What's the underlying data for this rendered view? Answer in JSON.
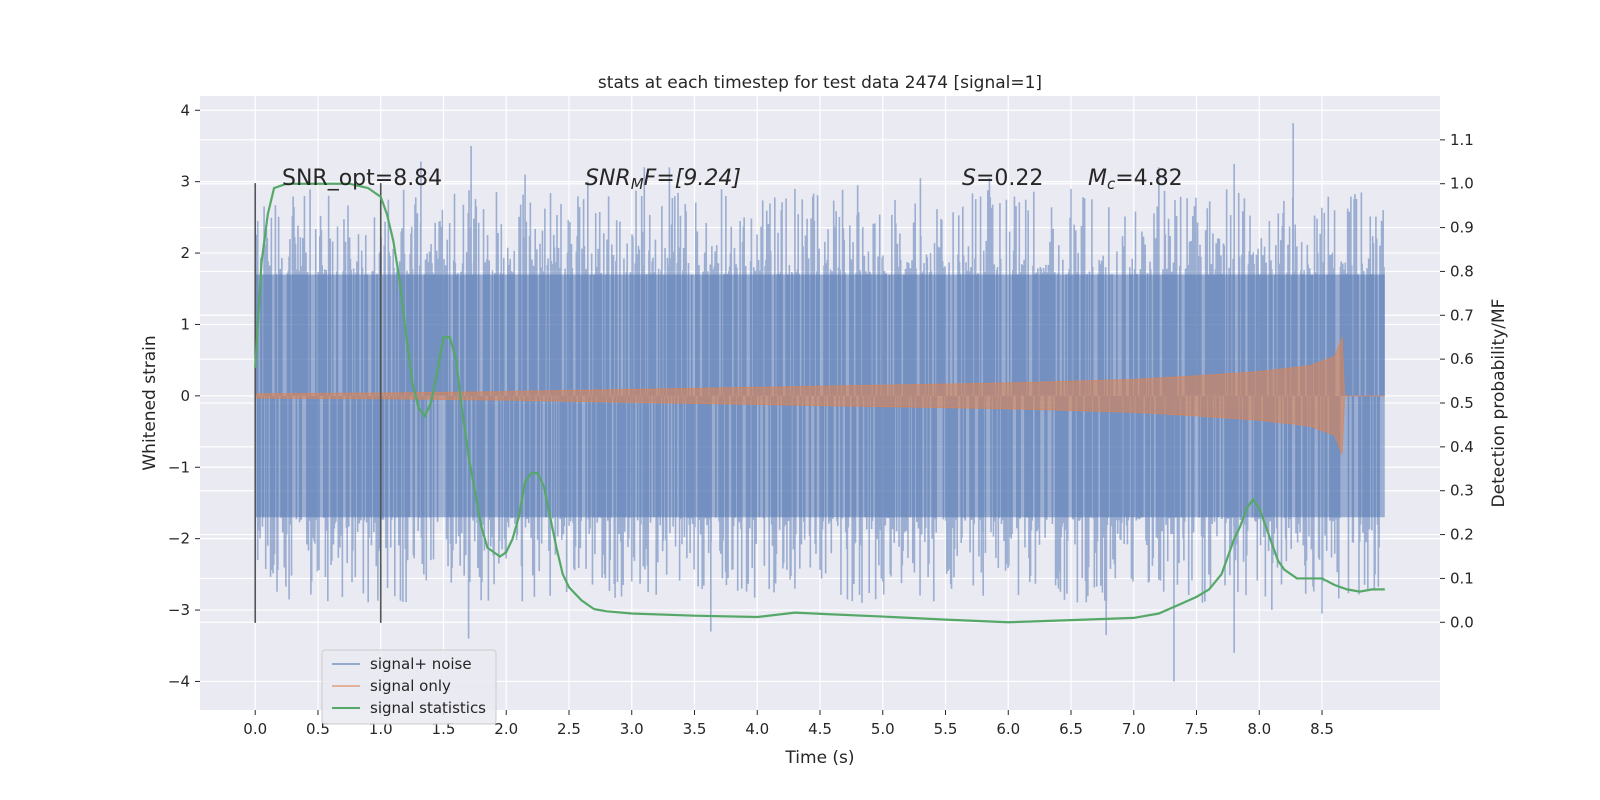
{
  "chart_data": {
    "type": "line",
    "title": "stats at each timestep for test data 2474 [signal=1]",
    "xlabel": "Time (s)",
    "ylabel_left": "Whitened strain",
    "ylabel_right": "Detection probability/MF",
    "xlim": [
      -0.44,
      9.44
    ],
    "ylim_left": [
      -4.4,
      4.2
    ],
    "ylim_right": [
      -0.2,
      1.2
    ],
    "xticks": [
      "0.0",
      "0.5",
      "1.0",
      "1.5",
      "2.0",
      "2.5",
      "3.0",
      "3.5",
      "4.0",
      "4.5",
      "5.0",
      "5.5",
      "6.0",
      "6.5",
      "7.0",
      "7.5",
      "8.0",
      "8.5"
    ],
    "yticks_left": [
      "4",
      "3",
      "2",
      "1",
      "0",
      "−1",
      "−2",
      "−3",
      "−4"
    ],
    "yticks_right": [
      "1.1",
      "1.0",
      "0.9",
      "0.8",
      "0.7",
      "0.6",
      "0.5",
      "0.4",
      "0.3",
      "0.2",
      "0.1",
      "0.0"
    ],
    "grid": true,
    "legend_position": "lower-left",
    "vlines_x": [
      0.0,
      1.0
    ],
    "vline_range": [
      -3.18,
      2.98
    ],
    "annotations": {
      "snr_opt": "SNR_opt=8.84",
      "snr_mf_main": "SNR",
      "snr_mf_sub": "M",
      "snr_mf_rest": "F=[9.24]",
      "s_main": "S",
      "s_rest": "=0.22",
      "mc_main": "M",
      "mc_sub": "c",
      "mc_rest": "=4.82"
    },
    "series": [
      {
        "name": "signal+ noise",
        "color": "#4c72b0",
        "axis": "left",
        "x_range": [
          0.0,
          9.0
        ],
        "envelope_upper": [
          [
            0.0,
            1.7
          ],
          [
            1.0,
            1.7
          ],
          [
            2.0,
            1.7
          ],
          [
            3.0,
            1.7
          ],
          [
            4.0,
            1.7
          ],
          [
            5.0,
            1.7
          ],
          [
            6.0,
            1.7
          ],
          [
            7.0,
            1.7
          ],
          [
            8.0,
            1.7
          ],
          [
            9.0,
            1.7
          ]
        ],
        "envelope_lower": [
          [
            0.0,
            -1.7
          ],
          [
            1.0,
            -1.7
          ],
          [
            2.0,
            -1.7
          ],
          [
            3.0,
            -1.7
          ],
          [
            4.0,
            -1.7
          ],
          [
            5.0,
            -1.7
          ],
          [
            6.0,
            -1.7
          ],
          [
            7.0,
            -1.7
          ],
          [
            8.0,
            -1.7
          ],
          [
            9.0,
            -1.7
          ]
        ],
        "peaks": [
          [
            0.02,
            2.45
          ],
          [
            0.3,
            2.4
          ],
          [
            0.95,
            2.5
          ],
          [
            1.32,
            3.28
          ],
          [
            1.72,
            3.5
          ],
          [
            2.15,
            3.1
          ],
          [
            2.65,
            3.0
          ],
          [
            3.1,
            3.2
          ],
          [
            3.3,
            3.2
          ],
          [
            3.75,
            2.8
          ],
          [
            4.3,
            2.9
          ],
          [
            4.8,
            2.95
          ],
          [
            5.3,
            3.05
          ],
          [
            5.85,
            3.05
          ],
          [
            6.5,
            2.9
          ],
          [
            7.2,
            3.2
          ],
          [
            7.8,
            3.25
          ],
          [
            8.27,
            3.82
          ],
          [
            8.6,
            2.6
          ],
          [
            0.02,
            -2.3
          ],
          [
            0.1,
            -2.1
          ],
          [
            0.27,
            -2.85
          ],
          [
            0.45,
            -2.6
          ],
          [
            1.0,
            -2.8
          ],
          [
            1.4,
            -2.3
          ],
          [
            1.7,
            -3.4
          ],
          [
            2.35,
            -2.8
          ],
          [
            3.0,
            -2.6
          ],
          [
            3.63,
            -3.3
          ],
          [
            4.3,
            -2.7
          ],
          [
            5.0,
            -2.6
          ],
          [
            5.8,
            -2.8
          ],
          [
            6.4,
            -2.7
          ],
          [
            6.78,
            -3.35
          ],
          [
            7.32,
            -4.0
          ],
          [
            7.8,
            -3.6
          ],
          [
            8.1,
            -3.0
          ],
          [
            8.5,
            -3.05
          ]
        ]
      },
      {
        "name": "signal only",
        "color": "#dd8452",
        "axis": "left",
        "envelope": [
          [
            0.0,
            0.03
          ],
          [
            1.0,
            0.04
          ],
          [
            2.0,
            0.06
          ],
          [
            3.0,
            0.09
          ],
          [
            4.0,
            0.12
          ],
          [
            5.0,
            0.15
          ],
          [
            6.0,
            0.18
          ],
          [
            7.0,
            0.23
          ],
          [
            7.5,
            0.28
          ],
          [
            8.0,
            0.34
          ],
          [
            8.4,
            0.42
          ],
          [
            8.6,
            0.55
          ],
          [
            8.66,
            0.82
          ],
          [
            8.68,
            0.0
          ],
          [
            9.0,
            0.0
          ]
        ]
      },
      {
        "name": "signal statistics",
        "color": "#55a868",
        "axis": "right",
        "points": [
          [
            0.0,
            0.58
          ],
          [
            0.05,
            0.82
          ],
          [
            0.1,
            0.93
          ],
          [
            0.15,
            0.99
          ],
          [
            0.25,
            1.0
          ],
          [
            0.5,
            1.0
          ],
          [
            0.75,
            1.0
          ],
          [
            0.9,
            0.99
          ],
          [
            1.0,
            0.97
          ],
          [
            1.05,
            0.93
          ],
          [
            1.1,
            0.87
          ],
          [
            1.15,
            0.78
          ],
          [
            1.2,
            0.66
          ],
          [
            1.25,
            0.55
          ],
          [
            1.3,
            0.49
          ],
          [
            1.35,
            0.47
          ],
          [
            1.4,
            0.5
          ],
          [
            1.45,
            0.57
          ],
          [
            1.5,
            0.65
          ],
          [
            1.55,
            0.65
          ],
          [
            1.6,
            0.6
          ],
          [
            1.65,
            0.48
          ],
          [
            1.7,
            0.38
          ],
          [
            1.75,
            0.3
          ],
          [
            1.8,
            0.22
          ],
          [
            1.85,
            0.17
          ],
          [
            1.9,
            0.16
          ],
          [
            1.95,
            0.15
          ],
          [
            2.0,
            0.16
          ],
          [
            2.05,
            0.19
          ],
          [
            2.1,
            0.24
          ],
          [
            2.15,
            0.32
          ],
          [
            2.2,
            0.34
          ],
          [
            2.25,
            0.34
          ],
          [
            2.3,
            0.31
          ],
          [
            2.35,
            0.24
          ],
          [
            2.4,
            0.17
          ],
          [
            2.45,
            0.11
          ],
          [
            2.5,
            0.08
          ],
          [
            2.6,
            0.05
          ],
          [
            2.7,
            0.03
          ],
          [
            2.8,
            0.025
          ],
          [
            3.0,
            0.02
          ],
          [
            3.5,
            0.015
          ],
          [
            4.0,
            0.012
          ],
          [
            4.3,
            0.022
          ],
          [
            4.6,
            0.018
          ],
          [
            5.0,
            0.013
          ],
          [
            5.5,
            0.006
          ],
          [
            6.0,
            0.0
          ],
          [
            6.5,
            0.005
          ],
          [
            7.0,
            0.01
          ],
          [
            7.2,
            0.02
          ],
          [
            7.4,
            0.045
          ],
          [
            7.5,
            0.058
          ],
          [
            7.6,
            0.075
          ],
          [
            7.7,
            0.11
          ],
          [
            7.75,
            0.15
          ],
          [
            7.8,
            0.19
          ],
          [
            7.85,
            0.22
          ],
          [
            7.9,
            0.26
          ],
          [
            7.95,
            0.28
          ],
          [
            8.0,
            0.26
          ],
          [
            8.05,
            0.22
          ],
          [
            8.1,
            0.18
          ],
          [
            8.15,
            0.14
          ],
          [
            8.2,
            0.12
          ],
          [
            8.3,
            0.1
          ],
          [
            8.5,
            0.1
          ],
          [
            8.6,
            0.085
          ],
          [
            8.7,
            0.075
          ],
          [
            8.8,
            0.07
          ],
          [
            8.9,
            0.075
          ],
          [
            9.0,
            0.075
          ]
        ]
      }
    ]
  }
}
